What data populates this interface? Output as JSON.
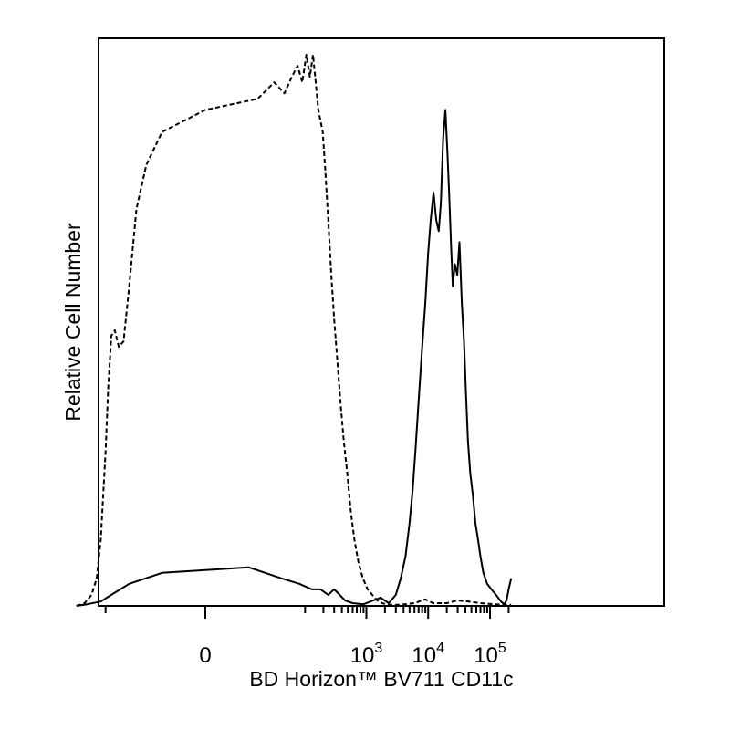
{
  "chart_data": {
    "type": "line",
    "title": "",
    "xlabel": "BD Horizon™ BV711 CD11c",
    "ylabel": "Relative Cell Number",
    "x_scale": "biexponential",
    "xlim": [
      -300,
      220000
    ],
    "ylim": [
      0,
      100
    ],
    "grid": false,
    "legend": "none",
    "x_tick_labels": [
      {
        "value": 0,
        "base": "0",
        "exp": ""
      },
      {
        "value": 1000,
        "base": "10",
        "exp": "3"
      },
      {
        "value": 10000,
        "base": "10",
        "exp": "4"
      },
      {
        "value": 100000,
        "base": "10",
        "exp": "5"
      }
    ],
    "series": [
      {
        "style": "dashed",
        "color": "#000000",
        "points": [
          [
            -300,
            0
          ],
          [
            -220,
            0.5
          ],
          [
            -170,
            2
          ],
          [
            -140,
            5
          ],
          [
            -120,
            12
          ],
          [
            -100,
            28
          ],
          [
            -90,
            40
          ],
          [
            -80,
            49
          ],
          [
            -70,
            50
          ],
          [
            -60,
            47
          ],
          [
            -50,
            48
          ],
          [
            -40,
            58
          ],
          [
            -30,
            72
          ],
          [
            -20,
            80
          ],
          [
            -10,
            86
          ],
          [
            0,
            90
          ],
          [
            15,
            92
          ],
          [
            30,
            95
          ],
          [
            45,
            93
          ],
          [
            60,
            96
          ],
          [
            75,
            98
          ],
          [
            90,
            95
          ],
          [
            105,
            100
          ],
          [
            120,
            96
          ],
          [
            135,
            100
          ],
          [
            150,
            95
          ],
          [
            165,
            90
          ],
          [
            180,
            88
          ],
          [
            195,
            86
          ],
          [
            215,
            79
          ],
          [
            240,
            70
          ],
          [
            270,
            60
          ],
          [
            300,
            52
          ],
          [
            340,
            44
          ],
          [
            380,
            37
          ],
          [
            430,
            30
          ],
          [
            490,
            24
          ],
          [
            560,
            17
          ],
          [
            640,
            12
          ],
          [
            740,
            8
          ],
          [
            880,
            5
          ],
          [
            1050,
            3
          ],
          [
            1250,
            2
          ],
          [
            1500,
            1
          ],
          [
            1800,
            0.5
          ],
          [
            2300,
            0.2
          ],
          [
            3500,
            0.2
          ],
          [
            6000,
            0.5
          ],
          [
            9000,
            1.2
          ],
          [
            12000,
            0.5
          ],
          [
            20000,
            0.5
          ],
          [
            30000,
            1
          ],
          [
            45000,
            0.8
          ],
          [
            70000,
            0.5
          ],
          [
            120000,
            0.3
          ],
          [
            220000,
            0.2
          ]
        ]
      },
      {
        "style": "solid",
        "color": "#000000",
        "points": [
          [
            -300,
            0
          ],
          [
            -200,
            0.3
          ],
          [
            -120,
            0.8
          ],
          [
            -80,
            2
          ],
          [
            -40,
            4
          ],
          [
            -10,
            6
          ],
          [
            10,
            7
          ],
          [
            40,
            5
          ],
          [
            80,
            4
          ],
          [
            130,
            3
          ],
          [
            180,
            3
          ],
          [
            240,
            2
          ],
          [
            300,
            3
          ],
          [
            370,
            2
          ],
          [
            450,
            1
          ],
          [
            600,
            0.5
          ],
          [
            900,
            0.3
          ],
          [
            1300,
            1
          ],
          [
            1700,
            1.5
          ],
          [
            2300,
            0.5
          ],
          [
            3000,
            2
          ],
          [
            3600,
            5
          ],
          [
            4300,
            9
          ],
          [
            5000,
            15
          ],
          [
            5600,
            21
          ],
          [
            6200,
            28
          ],
          [
            7000,
            37
          ],
          [
            8000,
            47
          ],
          [
            9000,
            55
          ],
          [
            10000,
            64
          ],
          [
            11000,
            70
          ],
          [
            12200,
            75
          ],
          [
            13500,
            70
          ],
          [
            14800,
            68
          ],
          [
            16000,
            73
          ],
          [
            17500,
            85
          ],
          [
            19000,
            90
          ],
          [
            20500,
            82
          ],
          [
            22000,
            74
          ],
          [
            23500,
            65
          ],
          [
            25000,
            58
          ],
          [
            27000,
            62
          ],
          [
            29500,
            60
          ],
          [
            32000,
            66
          ],
          [
            35000,
            55
          ],
          [
            38000,
            48
          ],
          [
            41000,
            38
          ],
          [
            44000,
            30
          ],
          [
            48000,
            24
          ],
          [
            53000,
            20
          ],
          [
            58000,
            15
          ],
          [
            64000,
            12
          ],
          [
            70000,
            9
          ],
          [
            78000,
            6
          ],
          [
            90000,
            4
          ],
          [
            105000,
            3
          ],
          [
            125000,
            2
          ],
          [
            150000,
            0.8
          ],
          [
            170000,
            0.3
          ],
          [
            185000,
            1
          ],
          [
            200000,
            3
          ],
          [
            220000,
            5
          ]
        ]
      }
    ]
  }
}
